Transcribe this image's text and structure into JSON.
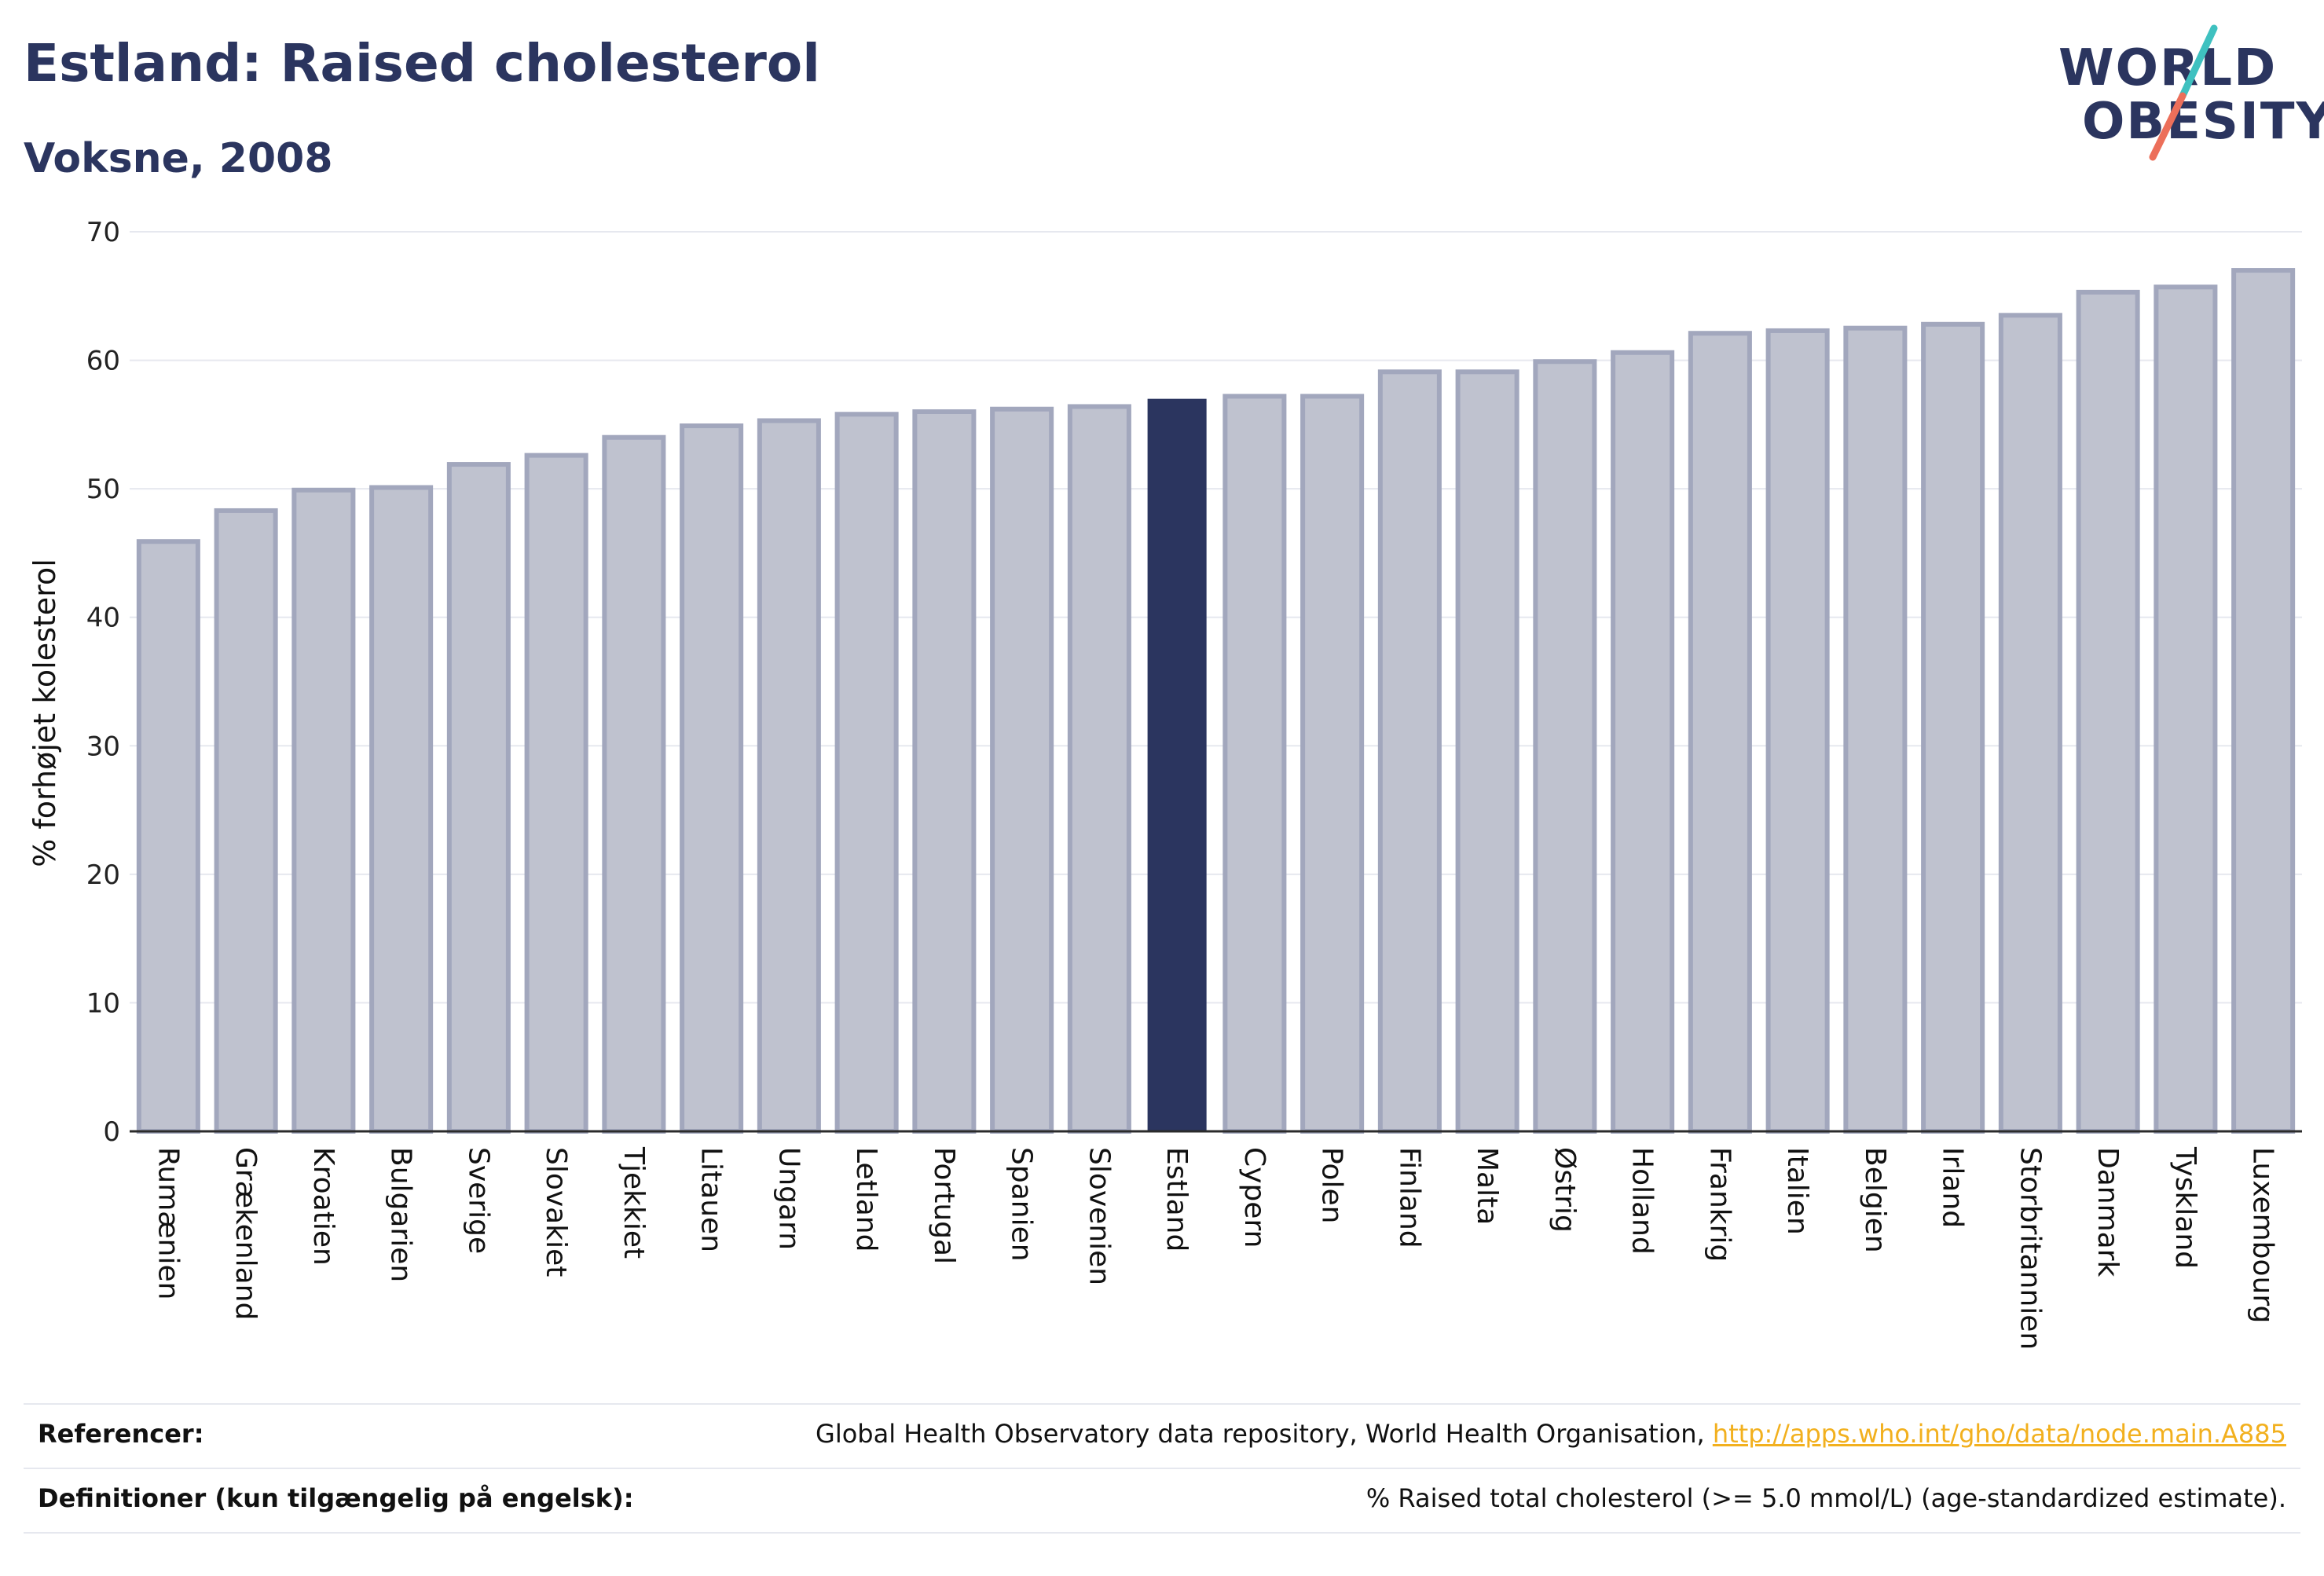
{
  "header": {
    "title": "Estland: Raised cholesterol",
    "subtitle": "Voksne, 2008"
  },
  "logo": {
    "line1": "WORLD",
    "line2": "OBESITY",
    "slash_colors": [
      "#3fc1c0",
      "#ec6f5a"
    ]
  },
  "colors": {
    "highlight": "#2b355f",
    "bar_fill": "#bfc2cf",
    "bar_stroke": "#a2a7bd",
    "grid": "#e6e8ef",
    "axis": "#2b2b2b"
  },
  "chart_data": {
    "type": "bar",
    "ylabel": "% forhøjet kolesterol",
    "ylim": [
      0,
      70
    ],
    "yticks": [
      0,
      10,
      20,
      30,
      40,
      50,
      60,
      70
    ],
    "grid": true,
    "highlight": "Estland",
    "categories": [
      "Rumænien",
      "Grækenland",
      "Kroatien",
      "Bulgarien",
      "Sverige",
      "Slovakiet",
      "Tjekkiet",
      "Litauen",
      "Ungarn",
      "Letland",
      "Portugal",
      "Spanien",
      "Slovenien",
      "Estland",
      "Cypern",
      "Polen",
      "Finland",
      "Malta",
      "Østrig",
      "Holland",
      "Frankrig",
      "Italien",
      "Belgien",
      "Irland",
      "Storbritannien",
      "Danmark",
      "Tyskland",
      "Luxembourg"
    ],
    "values": [
      45.9,
      48.3,
      49.9,
      50.1,
      51.9,
      52.6,
      54.0,
      54.9,
      55.3,
      55.8,
      56.0,
      56.2,
      56.4,
      57.0,
      57.2,
      57.2,
      59.1,
      59.1,
      59.9,
      60.6,
      62.1,
      62.3,
      62.5,
      62.8,
      63.5,
      65.3,
      65.7,
      67.0
    ]
  },
  "footer": {
    "references_label": "Referencer:",
    "references_text": "Global Health Observatory data repository, World Health Organisation, ",
    "references_link": "http://apps.who.int/gho/data/node.main.A885",
    "definitions_label": "Definitioner (kun tilgængelig på engelsk):",
    "definitions_text": "% Raised total cholesterol (>= 5.0 mmol/L) (age-standardized estimate)."
  }
}
